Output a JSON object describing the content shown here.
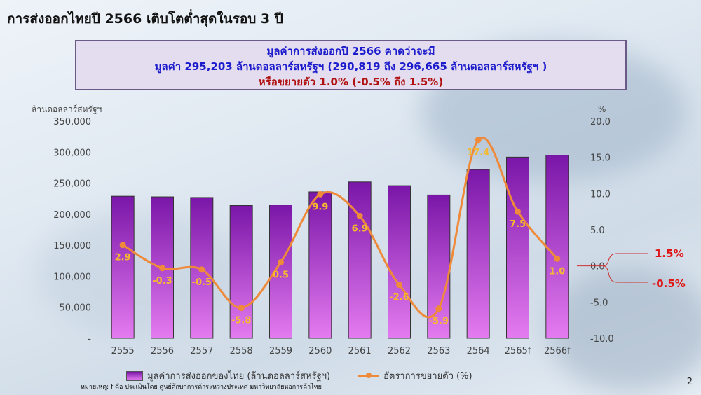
{
  "page_title": "การส่งออกไทยปี 2566 เติบโตต่ำสุดในรอบ 3 ปี",
  "summary": {
    "line1": "มูลค่าการส่งออกปี 2566 คาดว่าจะมี",
    "line2": "มูลค่า 295,203 ล้านดอลลาร์สหรัฐฯ (290,819 ถึง 296,665 ล้านดอลลาร์สหรัฐฯ )",
    "line3": "หรือขยายตัว 1.0% (-0.5% ถึง 1.5%)"
  },
  "chart_data": {
    "type": "bar",
    "categories": [
      "2555",
      "2556",
      "2557",
      "2558",
      "2559",
      "2560",
      "2561",
      "2562",
      "2563",
      "2564",
      "2565f",
      "2566f"
    ],
    "series": [
      {
        "name": "มูลค่าการส่งออกของไทย (ล้านดอลลาร์สหรัฐฯ)",
        "type": "bar",
        "axis": "left",
        "values": [
          229000,
          228000,
          227000,
          214000,
          215000,
          236000,
          252000,
          246000,
          231000,
          272000,
          292000,
          295203
        ]
      },
      {
        "name": "อัตราการขยายตัว (%)",
        "type": "line",
        "axis": "right",
        "values": [
          2.9,
          -0.3,
          -0.5,
          -5.8,
          0.5,
          9.9,
          6.9,
          -2.6,
          -5.9,
          17.4,
          7.5,
          1.0
        ],
        "labels": [
          "2.9",
          "-0.3",
          "-0.5",
          "-5.8",
          "0.5",
          "9.9",
          "6.9",
          "-2.6",
          "-5.9",
          "17.4",
          "7.5",
          "1.0"
        ]
      }
    ],
    "left_axis": {
      "label": "ล้านดอลลาร์สหรัฐฯ",
      "ylim": [
        0,
        350000
      ],
      "ticks": [
        "-",
        "50,000",
        "100,000",
        "150,000",
        "200,000",
        "250,000",
        "300,000",
        "350,000"
      ]
    },
    "right_axis": {
      "label": "%",
      "ylim": [
        -10,
        20
      ],
      "ticks": [
        "-10.0",
        "-5.0",
        "0.0",
        "5.0",
        "10.0",
        "15.0",
        "20.0"
      ]
    },
    "range_annotation": {
      "high": "1.5%",
      "low": "-0.5%"
    },
    "legend_position": "bottom",
    "grid": false
  },
  "footnote": "หมายเหตุ: f คือ ประเมินโดย ศูนย์ศึกษาการค้าระหว่างประเทศ มหาวิทยาลัยหอการค้าไทย",
  "page_number": "2",
  "colors": {
    "bar_top": "#7a16a8",
    "bar_bottom": "#e47bf0",
    "line": "#ee8a3a",
    "label": "#f5b82e",
    "range": "#e01515"
  }
}
